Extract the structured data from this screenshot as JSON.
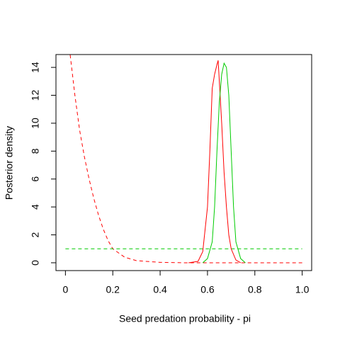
{
  "chart_data": {
    "type": "line",
    "xlabel": "Seed predation probability - pi",
    "ylabel": "Posterior density",
    "xlim": [
      -0.04,
      1.04
    ],
    "ylim": [
      -0.56,
      14.92
    ],
    "xticks": [
      0,
      0.2,
      0.4,
      0.6,
      0.8,
      {
        "value": 1,
        "label": "1.0"
      }
    ],
    "yticks": [
      0,
      2,
      4,
      6,
      8,
      10,
      12,
      14
    ],
    "series": [
      {
        "color": "#ff0000",
        "dash": true,
        "x": [
          0.02,
          0.04,
          0.06,
          0.08,
          0.1,
          0.12,
          0.14,
          0.16,
          0.18,
          0.2,
          0.25,
          0.3,
          0.4,
          0.5,
          0.6,
          0.7,
          0.8,
          0.9,
          1
        ],
        "values": [
          14.9,
          12.0,
          9.5,
          7.6,
          6.0,
          4.6,
          3.4,
          2.4,
          1.6,
          1.0,
          0.4,
          0.15,
          0.03,
          0,
          0,
          0,
          0,
          0,
          0
        ]
      },
      {
        "color": "#00cc00",
        "dash": true,
        "x": [
          0,
          1
        ],
        "values": [
          1,
          1
        ]
      },
      {
        "color": "#ff0000",
        "dash": false,
        "x": [
          0.52,
          0.56,
          0.58,
          0.6,
          0.61,
          0.62,
          0.63,
          0.64,
          0.645,
          0.65,
          0.66,
          0.67,
          0.68,
          0.69,
          0.7,
          0.72,
          0.74
        ],
        "values": [
          0,
          0.1,
          0.8,
          4,
          8,
          12.5,
          13.5,
          14.2,
          14.5,
          13,
          10,
          6.5,
          4,
          2,
          1,
          0.2,
          0
        ]
      },
      {
        "color": "#00cc00",
        "dash": false,
        "x": [
          0.58,
          0.6,
          0.62,
          0.63,
          0.64,
          0.65,
          0.66,
          0.67,
          0.68,
          0.69,
          0.7,
          0.71,
          0.72,
          0.74,
          0.76
        ],
        "values": [
          0,
          0.3,
          1.5,
          4,
          8,
          11.5,
          13.5,
          14.3,
          14,
          12,
          8,
          4,
          1.5,
          0.3,
          0
        ]
      }
    ]
  }
}
